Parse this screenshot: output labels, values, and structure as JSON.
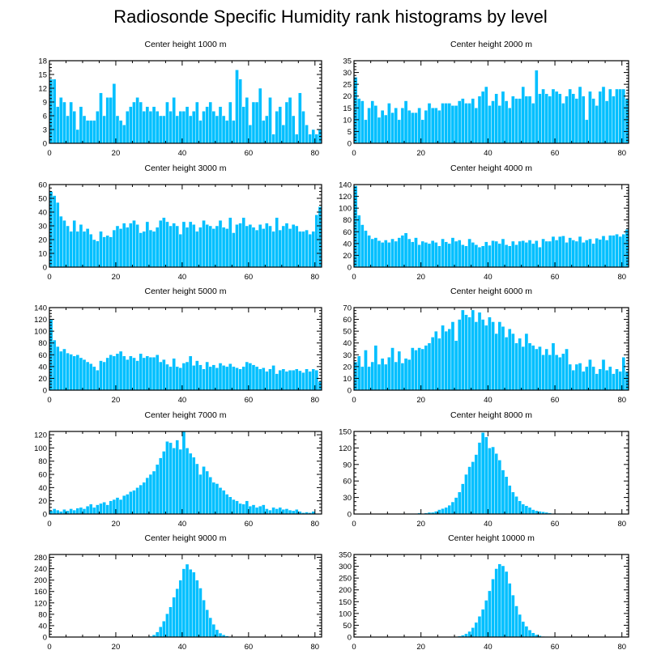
{
  "page_title": "Radiosonde Specific Humidity rank histograms by level",
  "colors": {
    "bar": "#00bfff",
    "axis": "#000000"
  },
  "chart_data": [
    {
      "type": "bar",
      "title": "Center height 1000 m",
      "xlabel": "",
      "ylabel": "",
      "xlim": [
        0,
        82
      ],
      "ylim": [
        0,
        18
      ],
      "xticks": [
        0,
        20,
        40,
        60,
        80
      ],
      "yticks": [
        0,
        3,
        6,
        9,
        12,
        15,
        18
      ],
      "x_start": 0,
      "values": [
        14,
        14,
        8,
        10,
        9,
        6,
        9,
        7,
        3,
        8,
        6,
        5,
        5,
        5,
        7,
        11,
        6,
        10,
        10,
        13,
        6,
        5,
        4,
        7,
        8,
        9,
        10,
        9,
        7,
        8,
        7,
        8,
        7,
        6,
        6,
        9,
        7,
        10,
        6,
        7,
        7,
        8,
        6,
        7,
        9,
        5,
        7,
        8,
        9,
        7,
        6,
        8,
        6,
        5,
        9,
        5,
        16,
        14,
        8,
        10,
        4,
        9,
        9,
        12,
        5,
        6,
        10,
        2,
        7,
        8,
        4,
        9,
        10,
        6,
        2,
        11,
        7,
        4,
        2,
        3,
        2,
        3
      ]
    },
    {
      "type": "bar",
      "title": "Center height 2000 m",
      "xlabel": "",
      "ylabel": "",
      "xlim": [
        0,
        82
      ],
      "ylim": [
        0,
        35
      ],
      "xticks": [
        0,
        20,
        40,
        60,
        80
      ],
      "yticks": [
        0,
        5,
        10,
        15,
        20,
        25,
        30,
        35
      ],
      "x_start": 0,
      "values": [
        28,
        19,
        18,
        10,
        15,
        18,
        16,
        11,
        14,
        12,
        17,
        13,
        15,
        10,
        15,
        18,
        14,
        13,
        13,
        15,
        10,
        14,
        17,
        15,
        15,
        14,
        17,
        17,
        17,
        16,
        16,
        18,
        19,
        17,
        17,
        19,
        15,
        20,
        22,
        24,
        16,
        18,
        21,
        16,
        22,
        18,
        15,
        20,
        19,
        19,
        24,
        20,
        20,
        17,
        31,
        21,
        23,
        21,
        20,
        23,
        22,
        21,
        17,
        20,
        23,
        21,
        19,
        24,
        20,
        10,
        22,
        19,
        16,
        22,
        24,
        18,
        23,
        20,
        23,
        23,
        23,
        19
      ]
    },
    {
      "type": "bar",
      "title": "Center height 3000 m",
      "xlabel": "",
      "ylabel": "",
      "xlim": [
        0,
        82
      ],
      "ylim": [
        0,
        60
      ],
      "xticks": [
        0,
        20,
        40,
        60,
        80
      ],
      "yticks": [
        0,
        10,
        20,
        30,
        40,
        50,
        60
      ],
      "x_start": 0,
      "values": [
        55,
        52,
        47,
        37,
        34,
        30,
        26,
        34,
        26,
        31,
        26,
        28,
        24,
        20,
        19,
        26,
        22,
        23,
        22,
        27,
        30,
        28,
        32,
        29,
        32,
        34,
        31,
        25,
        26,
        33,
        27,
        26,
        29,
        34,
        36,
        33,
        30,
        32,
        30,
        24,
        33,
        29,
        33,
        31,
        26,
        29,
        34,
        31,
        30,
        28,
        30,
        34,
        29,
        28,
        36,
        25,
        31,
        32,
        36,
        30,
        31,
        29,
        27,
        31,
        28,
        32,
        30,
        26,
        36,
        27,
        30,
        32,
        28,
        31,
        30,
        26,
        26,
        27,
        24,
        26,
        38,
        44
      ]
    },
    {
      "type": "bar",
      "title": "Center height 4000 m",
      "xlabel": "",
      "ylabel": "",
      "xlim": [
        0,
        82
      ],
      "ylim": [
        0,
        140
      ],
      "xticks": [
        0,
        20,
        40,
        60,
        80
      ],
      "yticks": [
        0,
        20,
        40,
        60,
        80,
        100,
        120,
        140
      ],
      "x_start": 0,
      "values": [
        138,
        88,
        72,
        62,
        54,
        48,
        50,
        45,
        42,
        46,
        42,
        48,
        44,
        50,
        54,
        58,
        48,
        43,
        50,
        38,
        44,
        42,
        40,
        45,
        42,
        36,
        48,
        43,
        40,
        50,
        44,
        46,
        38,
        36,
        48,
        42,
        38,
        34,
        36,
        43,
        37,
        45,
        44,
        40,
        48,
        38,
        36,
        44,
        38,
        44,
        45,
        42,
        46,
        40,
        45,
        34,
        48,
        44,
        44,
        52,
        46,
        52,
        53,
        42,
        50,
        46,
        44,
        52,
        42,
        46,
        48,
        40,
        49,
        47,
        53,
        46,
        54,
        54,
        56,
        52,
        56,
        64
      ]
    },
    {
      "type": "bar",
      "title": "Center height 5000 m",
      "xlabel": "",
      "ylabel": "",
      "xlim": [
        0,
        82
      ],
      "ylim": [
        0,
        140
      ],
      "xticks": [
        0,
        20,
        40,
        60,
        80
      ],
      "yticks": [
        0,
        20,
        40,
        60,
        80,
        100,
        120,
        140
      ],
      "x_start": 0,
      "values": [
        120,
        85,
        74,
        66,
        70,
        63,
        61,
        58,
        60,
        55,
        52,
        48,
        45,
        40,
        34,
        50,
        48,
        55,
        60,
        58,
        62,
        66,
        58,
        52,
        58,
        55,
        50,
        62,
        55,
        58,
        56,
        56,
        60,
        48,
        52,
        44,
        40,
        54,
        40,
        38,
        46,
        48,
        58,
        42,
        50,
        43,
        36,
        48,
        40,
        43,
        38,
        46,
        42,
        40,
        45,
        40,
        38,
        36,
        40,
        48,
        46,
        43,
        40,
        36,
        38,
        32,
        36,
        42,
        28,
        34,
        36,
        32,
        34,
        34,
        36,
        33,
        30,
        36,
        32,
        36,
        34,
        15
      ]
    },
    {
      "type": "bar",
      "title": "Center height 6000 m",
      "xlabel": "",
      "ylabel": "",
      "xlim": [
        0,
        82
      ],
      "ylim": [
        0,
        70
      ],
      "xticks": [
        0,
        20,
        40,
        60,
        80
      ],
      "yticks": [
        0,
        10,
        20,
        30,
        40,
        50,
        60,
        70
      ],
      "x_start": 0,
      "values": [
        24,
        29,
        20,
        34,
        20,
        24,
        38,
        22,
        27,
        22,
        28,
        36,
        24,
        33,
        23,
        27,
        26,
        36,
        34,
        36,
        35,
        38,
        40,
        45,
        50,
        44,
        55,
        50,
        52,
        58,
        42,
        60,
        68,
        64,
        62,
        68,
        58,
        66,
        60,
        55,
        62,
        58,
        48,
        58,
        54,
        45,
        52,
        48,
        40,
        44,
        37,
        48,
        40,
        38,
        35,
        37,
        30,
        35,
        30,
        40,
        30,
        28,
        31,
        35,
        22,
        17,
        22,
        23,
        16,
        20,
        26,
        20,
        14,
        18,
        26,
        17,
        20,
        14,
        18,
        16,
        28,
        16
      ]
    },
    {
      "type": "bar",
      "title": "Center height 7000 m",
      "xlabel": "",
      "ylabel": "",
      "xlim": [
        0,
        82
      ],
      "ylim": [
        0,
        125
      ],
      "xticks": [
        0,
        20,
        40,
        60,
        80
      ],
      "yticks": [
        0,
        20,
        40,
        60,
        80,
        100,
        120
      ],
      "x_start": 0,
      "values": [
        5,
        8,
        6,
        4,
        7,
        5,
        8,
        6,
        9,
        10,
        8,
        12,
        15,
        10,
        14,
        16,
        18,
        14,
        20,
        22,
        25,
        22,
        28,
        30,
        34,
        36,
        40,
        44,
        48,
        55,
        60,
        65,
        75,
        85,
        95,
        110,
        108,
        100,
        112,
        98,
        126,
        100,
        92,
        86,
        76,
        60,
        72,
        65,
        56,
        48,
        46,
        40,
        36,
        30,
        26,
        22,
        20,
        16,
        15,
        20,
        12,
        14,
        10,
        12,
        14,
        8,
        6,
        10,
        8,
        10,
        7,
        8,
        6,
        5,
        7,
        4,
        2,
        3,
        2,
        4,
        1,
        1
      ]
    },
    {
      "type": "bar",
      "title": "Center height 8000 m",
      "xlabel": "",
      "ylabel": "",
      "xlim": [
        0,
        82
      ],
      "ylim": [
        0,
        150
      ],
      "xticks": [
        0,
        20,
        40,
        60,
        80
      ],
      "yticks": [
        0,
        30,
        60,
        90,
        120,
        150
      ],
      "x_start": 0,
      "values": [
        0,
        0,
        0,
        0,
        0,
        0,
        0,
        0,
        0,
        0,
        0,
        0,
        0,
        0,
        0,
        0,
        1,
        1,
        1,
        2,
        1,
        2,
        3,
        3,
        5,
        8,
        10,
        12,
        16,
        22,
        30,
        40,
        55,
        72,
        86,
        95,
        108,
        130,
        148,
        140,
        120,
        122,
        110,
        98,
        80,
        68,
        52,
        40,
        32,
        24,
        18,
        15,
        12,
        8,
        6,
        5,
        4,
        3,
        2,
        1,
        1,
        1,
        1,
        0,
        0,
        0,
        0,
        0,
        0,
        0,
        0,
        0,
        0,
        0,
        0,
        0,
        0,
        0,
        0,
        0,
        0,
        0
      ]
    },
    {
      "type": "bar",
      "title": "Center height 9000 m",
      "xlabel": "",
      "ylabel": "",
      "xlim": [
        0,
        82
      ],
      "ylim": [
        0,
        290
      ],
      "xticks": [
        0,
        20,
        40,
        60,
        80
      ],
      "yticks": [
        0,
        40,
        80,
        120,
        160,
        200,
        240,
        280
      ],
      "x_start": 0,
      "values": [
        0,
        0,
        0,
        0,
        0,
        0,
        0,
        0,
        0,
        0,
        0,
        0,
        0,
        0,
        0,
        0,
        0,
        0,
        0,
        0,
        0,
        0,
        0,
        0,
        0,
        0,
        0,
        0,
        0,
        1,
        3,
        8,
        18,
        36,
        56,
        82,
        106,
        140,
        170,
        200,
        240,
        256,
        238,
        228,
        200,
        172,
        130,
        96,
        68,
        45,
        26,
        14,
        8,
        4,
        2,
        1,
        0,
        0,
        0,
        0,
        0,
        0,
        0,
        0,
        0,
        0,
        0,
        0,
        0,
        0,
        0,
        0,
        0,
        0,
        0,
        0,
        0,
        0,
        0,
        0,
        0,
        0
      ]
    },
    {
      "type": "bar",
      "title": "Center height 10000 m",
      "xlabel": "",
      "ylabel": "",
      "xlim": [
        0,
        82
      ],
      "ylim": [
        0,
        350
      ],
      "xticks": [
        0,
        20,
        40,
        60,
        80
      ],
      "yticks": [
        0,
        50,
        100,
        150,
        200,
        250,
        300,
        350
      ],
      "x_start": 0,
      "values": [
        0,
        0,
        0,
        0,
        0,
        0,
        0,
        0,
        0,
        0,
        0,
        0,
        0,
        0,
        0,
        0,
        0,
        0,
        0,
        0,
        0,
        0,
        0,
        0,
        0,
        0,
        0,
        0,
        1,
        1,
        2,
        4,
        8,
        14,
        24,
        40,
        62,
        88,
        118,
        156,
        196,
        246,
        290,
        310,
        302,
        278,
        228,
        178,
        132,
        96,
        66,
        46,
        30,
        18,
        10,
        6,
        3,
        2,
        1,
        1,
        0,
        0,
        0,
        0,
        0,
        0,
        0,
        0,
        0,
        0,
        0,
        0,
        0,
        0,
        0,
        0,
        0,
        0,
        0,
        0,
        0,
        0
      ]
    }
  ]
}
